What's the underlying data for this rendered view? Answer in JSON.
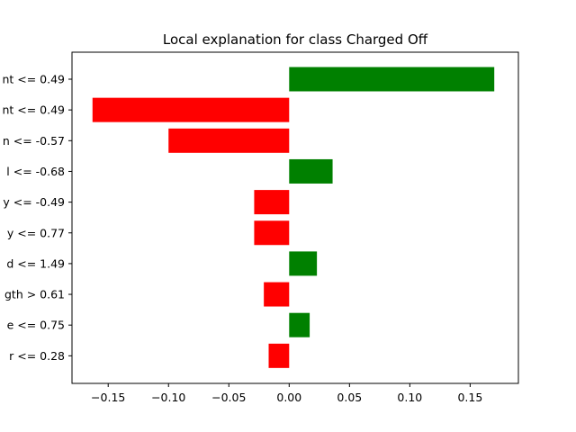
{
  "chart_data": {
    "type": "bar",
    "orientation": "horizontal",
    "title": "Local explanation for class Charged Off",
    "xlabel": "",
    "ylabel": "",
    "xlim": [
      -0.18,
      0.19
    ],
    "xticks": [
      -0.15,
      -0.1,
      -0.05,
      0.0,
      0.05,
      0.1,
      0.15
    ],
    "xtick_labels": [
      "−0.15",
      "−0.10",
      "−0.05",
      "0.00",
      "0.05",
      "0.10",
      "0.15"
    ],
    "grid": false,
    "categories": [
      "nt <= 0.49",
      "nt <= 0.49",
      "n <= -0.57",
      "l <= -0.68",
      "y <= -0.49",
      "y <= 0.77",
      "d <= 1.49",
      "gth > 0.61",
      "e <= 0.75",
      "r <= 0.28"
    ],
    "values": [
      0.17,
      -0.163,
      -0.1,
      0.036,
      -0.029,
      -0.029,
      0.023,
      -0.021,
      0.017,
      -0.017
    ],
    "colors": {
      "positive": "#008000",
      "negative": "#ff0000"
    }
  }
}
